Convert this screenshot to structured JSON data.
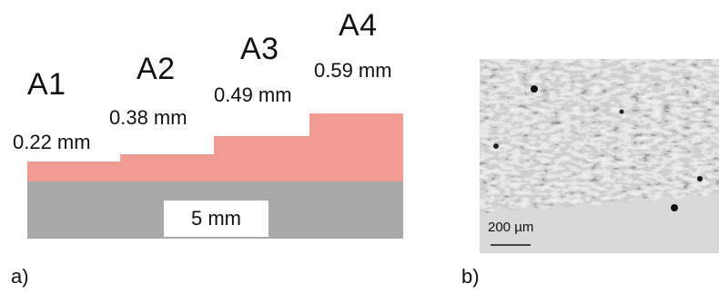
{
  "panel_a": {
    "label": "a)",
    "substrate": {
      "label": "5 mm",
      "color": "#a9a9a9"
    },
    "coating_color": "#f19b95",
    "steps": [
      {
        "name": "A1",
        "thickness": "0.22 mm",
        "thickness_mm": 0.22
      },
      {
        "name": "A2",
        "thickness": "0.38 mm",
        "thickness_mm": 0.38
      },
      {
        "name": "A3",
        "thickness": "0.49 mm",
        "thickness_mm": 0.49
      },
      {
        "name": "A4",
        "thickness": "0.59 mm",
        "thickness_mm": 0.59
      }
    ]
  },
  "panel_b": {
    "label": "b)",
    "scale_bar": "200 µm"
  }
}
